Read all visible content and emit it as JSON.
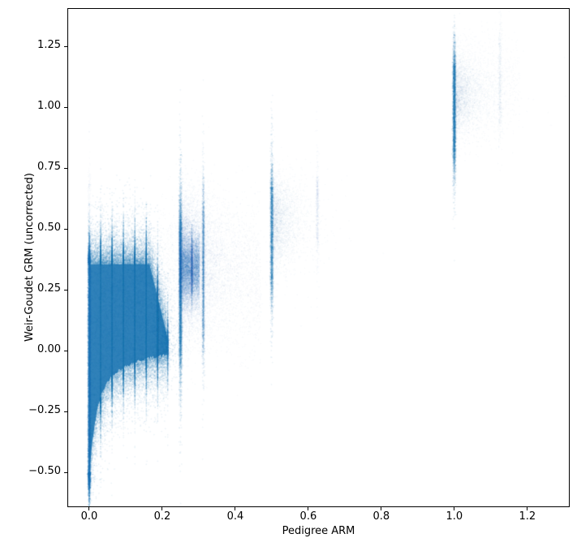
{
  "chart_data": {
    "type": "scatter",
    "title": "",
    "xlabel": "Pedigree ARM",
    "ylabel": "Weir-Goudet GRM (uncorrected)",
    "xlim": [
      -0.06,
      1.316
    ],
    "ylim": [
      -0.643,
      1.407
    ],
    "grid": false,
    "legend": null,
    "point_color": "#1f77b4",
    "spine_color": "#000000",
    "background_color": "#ffffff",
    "x_ticks": [
      {
        "value": 0.0,
        "label": "0.0"
      },
      {
        "value": 0.2,
        "label": "0.2"
      },
      {
        "value": 0.4,
        "label": "0.4"
      },
      {
        "value": 0.6,
        "label": "0.6"
      },
      {
        "value": 0.8,
        "label": "0.8"
      },
      {
        "value": 1.0,
        "label": "1.0"
      },
      {
        "value": 1.2,
        "label": "1.2"
      }
    ],
    "y_ticks": [
      {
        "value": -0.5,
        "label": "−0.50"
      },
      {
        "value": -0.25,
        "label": "−0.25"
      },
      {
        "value": 0.0,
        "label": "0.00"
      },
      {
        "value": 0.25,
        "label": "0.25"
      },
      {
        "value": 0.5,
        "label": "0.50"
      },
      {
        "value": 0.75,
        "label": "0.75"
      },
      {
        "value": 1.0,
        "label": "1.00"
      },
      {
        "value": 1.25,
        "label": "1.25"
      }
    ],
    "note": "Alpha-blended density scatter of pairwise relatedness: huge solid mass at pedigree 0-0.2 / GRM -0.5-0.36, vertical streaks at discrete pedigree values 0, 1/4, 5/16, 1/2, 5/8, 1, 9/8; clusters below parameterize the point density model.",
    "density_model": {
      "seed": 42,
      "point_size": 1.4,
      "silhouette": {
        "x_max": 0.215,
        "top": 0.355,
        "taper_x": 0.165,
        "taper_top": 0.05,
        "bot_a1": -0.33,
        "bot_t1": 0.018,
        "bot_a2": -0.19,
        "bot_t2": 0.09,
        "fill_alpha": 0.92
      },
      "clusters": [
        {
          "kind": "blobfuzz",
          "name": "main-mass-fuzz",
          "n": 45000,
          "alpha": 0.1,
          "top_fuzz": 0.05,
          "bot_fuzz": 0.05,
          "right_fuzz": 0.012,
          "quant": 32,
          "quant_frac": 0.5
        },
        {
          "kind": "vstreak",
          "name": "column-x0",
          "x": 0.0,
          "x_sd": 0.0018,
          "y_min": -0.5,
          "y_max": 0.36,
          "y_fuzz": 0.035,
          "n": 9000,
          "alpha": 0.12
        },
        {
          "kind": "vstreak",
          "name": "column-x0-upper-dust",
          "x": 0.0,
          "x_sd": 0.002,
          "y_min": 0.37,
          "y_max": 0.7,
          "y_fuzz": 0.03,
          "n": 260,
          "alpha": 0.03
        },
        {
          "kind": "vstreak",
          "name": "streak-x0.25",
          "x": 0.25,
          "x_sd": 0.002,
          "y_min": 0.02,
          "y_max": 0.53,
          "y_fuzz": 0.09,
          "n": 5200,
          "alpha": 0.1
        },
        {
          "kind": "cloud",
          "name": "core-x0.25-0.30",
          "x_min": 0.248,
          "x_max": 0.302,
          "quant": 32,
          "quant_frac": 0.3,
          "y_mean": 0.34,
          "y_sd": 0.07,
          "n": 9000,
          "alpha": 0.07
        },
        {
          "kind": "cloud",
          "name": "halo-x0.25-0.38",
          "x_min": 0.245,
          "x_scale": 0.038,
          "y_mean": 0.36,
          "y_sd": 0.13,
          "n": 8000,
          "alpha": 0.045
        },
        {
          "kind": "vstreak",
          "name": "streak-x0.3125",
          "x": 0.3125,
          "x_sd": 0.0016,
          "y_min": 0.08,
          "y_max": 0.57,
          "y_fuzz": 0.07,
          "n": 2600,
          "alpha": 0.08
        },
        {
          "kind": "cloud",
          "name": "dust-mid-diagonal",
          "x_min": 0.19,
          "x_max": 0.47,
          "y_mean": 0.3,
          "y_sd": 0.15,
          "n": 2600,
          "alpha": 0.035
        },
        {
          "kind": "vstreak",
          "name": "streak-x0.5",
          "x": 0.5,
          "x_sd": 0.002,
          "y_min": 0.29,
          "y_max": 0.67,
          "y_fuzz": 0.07,
          "n": 2900,
          "alpha": 0.1
        },
        {
          "kind": "cloud",
          "name": "cloud-x0.5",
          "x_min": 0.5,
          "x_scale": 0.03,
          "y_mean": 0.53,
          "y_sd": 0.09,
          "n": 2700,
          "alpha": 0.04
        },
        {
          "kind": "vstreak",
          "name": "streak-x0.625",
          "x": 0.625,
          "x_sd": 0.002,
          "y_min": 0.45,
          "y_max": 0.7,
          "y_fuzz": 0.06,
          "n": 420,
          "alpha": 0.045
        },
        {
          "kind": "vstreak",
          "name": "streak-x1.0",
          "x": 1.0,
          "x_sd": 0.002,
          "y_min": 0.82,
          "y_max": 1.17,
          "y_fuzz": 0.06,
          "n": 4200,
          "alpha": 0.1
        },
        {
          "kind": "cloud",
          "name": "cloud-x1.0",
          "x_min": 1.0,
          "x_scale": 0.033,
          "y_mean": 1.05,
          "y_sd": 0.085,
          "n": 2800,
          "alpha": 0.04
        },
        {
          "kind": "vstreak",
          "name": "streak-x1.125",
          "x": 1.125,
          "x_sd": 0.0025,
          "y_min": 0.95,
          "y_max": 1.28,
          "y_fuzz": 0.05,
          "n": 450,
          "alpha": 0.04
        },
        {
          "kind": "cloud",
          "name": "dust-topright",
          "x_min": 1.0,
          "x_max": 1.18,
          "y_mean": 1.1,
          "y_sd": 0.1,
          "n": 650,
          "alpha": 0.03
        }
      ]
    }
  }
}
